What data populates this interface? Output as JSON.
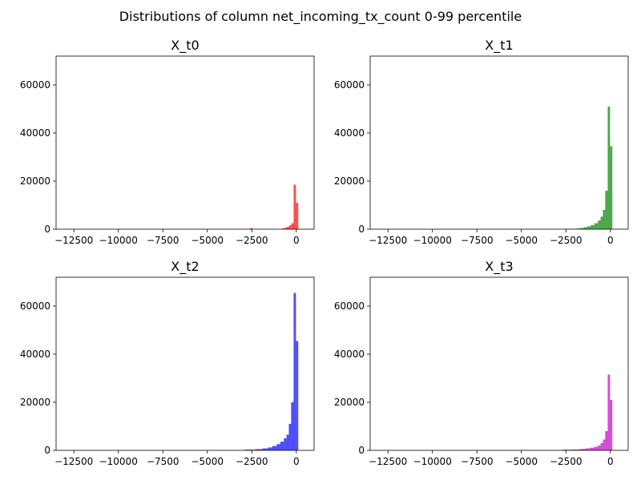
{
  "figure": {
    "suptitle": "Distributions of column net_incoming_tx_count 0-99 percentile"
  },
  "chart_data": [
    {
      "type": "bar",
      "title": "X_t0",
      "color": "#ff0000",
      "xlim": [
        -13500,
        1000
      ],
      "ylim": [
        0,
        72000
      ],
      "xticks": [
        -12500,
        -10000,
        -7500,
        -5000,
        -2500,
        0
      ],
      "xtick_labels": [
        "−12500",
        "−10000",
        "−7500",
        "−5000",
        "−2500",
        "0"
      ],
      "yticks": [
        0,
        20000,
        40000,
        60000
      ],
      "ytick_labels": [
        "0",
        "20000",
        "40000",
        "60000"
      ],
      "bins": [
        {
          "x0": -2600,
          "x1": -2470,
          "value": 500
        },
        {
          "x0": -800,
          "x1": -670,
          "value": 300
        },
        {
          "x0": -670,
          "x1": -540,
          "value": 600
        },
        {
          "x0": -540,
          "x1": -410,
          "value": 1000
        },
        {
          "x0": -410,
          "x1": -280,
          "value": 1600
        },
        {
          "x0": -280,
          "x1": -150,
          "value": 2500
        },
        {
          "x0": -150,
          "x1": -20,
          "value": 18500
        },
        {
          "x0": -20,
          "x1": 110,
          "value": 11000
        }
      ]
    },
    {
      "type": "bar",
      "title": "X_t1",
      "color": "#008000",
      "xlim": [
        -13500,
        1000
      ],
      "ylim": [
        0,
        72000
      ],
      "xticks": [
        -12500,
        -10000,
        -7500,
        -5000,
        -2500,
        0
      ],
      "xtick_labels": [
        "−12500",
        "−10000",
        "−7500",
        "−5000",
        "−2500",
        "0"
      ],
      "yticks": [
        0,
        20000,
        40000,
        60000
      ],
      "ytick_labels": [
        "0",
        "20000",
        "40000",
        "60000"
      ],
      "bins": [
        {
          "x0": -2600,
          "x1": -1900,
          "value": 150
        },
        {
          "x0": -1900,
          "x1": -1700,
          "value": 300
        },
        {
          "x0": -1700,
          "x1": -1500,
          "value": 500
        },
        {
          "x0": -1500,
          "x1": -1300,
          "value": 800
        },
        {
          "x0": -1300,
          "x1": -1100,
          "value": 1200
        },
        {
          "x0": -1100,
          "x1": -900,
          "value": 1700
        },
        {
          "x0": -900,
          "x1": -700,
          "value": 2500
        },
        {
          "x0": -700,
          "x1": -550,
          "value": 3600
        },
        {
          "x0": -550,
          "x1": -420,
          "value": 5200
        },
        {
          "x0": -420,
          "x1": -290,
          "value": 8000
        },
        {
          "x0": -290,
          "x1": -150,
          "value": 16000
        },
        {
          "x0": -150,
          "x1": -20,
          "value": 51000
        },
        {
          "x0": -20,
          "x1": 110,
          "value": 34500
        }
      ]
    },
    {
      "type": "bar",
      "title": "X_t2",
      "color": "#0000ff",
      "xlim": [
        -13500,
        1000
      ],
      "ylim": [
        0,
        72000
      ],
      "xticks": [
        -12500,
        -10000,
        -7500,
        -5000,
        -2500,
        0
      ],
      "xtick_labels": [
        "−12500",
        "−10000",
        "−7500",
        "−5000",
        "−2500",
        "0"
      ],
      "yticks": [
        0,
        20000,
        40000,
        60000
      ],
      "ytick_labels": [
        "0",
        "20000",
        "40000",
        "60000"
      ],
      "bins": [
        {
          "x0": -2900,
          "x1": -2300,
          "value": 300
        },
        {
          "x0": -2300,
          "x1": -1900,
          "value": 500
        },
        {
          "x0": -1900,
          "x1": -1600,
          "value": 800
        },
        {
          "x0": -1600,
          "x1": -1350,
          "value": 1200
        },
        {
          "x0": -1350,
          "x1": -1100,
          "value": 1800
        },
        {
          "x0": -1100,
          "x1": -900,
          "value": 2600
        },
        {
          "x0": -900,
          "x1": -700,
          "value": 3600
        },
        {
          "x0": -700,
          "x1": -550,
          "value": 5000
        },
        {
          "x0": -550,
          "x1": -420,
          "value": 6500
        },
        {
          "x0": -420,
          "x1": -290,
          "value": 11000
        },
        {
          "x0": -290,
          "x1": -150,
          "value": 20000
        },
        {
          "x0": -150,
          "x1": -20,
          "value": 65500
        },
        {
          "x0": -20,
          "x1": 110,
          "value": 45500
        }
      ]
    },
    {
      "type": "bar",
      "title": "X_t3",
      "color": "#bf00bf",
      "xlim": [
        -13500,
        1000
      ],
      "ylim": [
        0,
        72000
      ],
      "xticks": [
        -12500,
        -10000,
        -7500,
        -5000,
        -2500,
        0
      ],
      "xtick_labels": [
        "−12500",
        "−10000",
        "−7500",
        "−5000",
        "−2500",
        "0"
      ],
      "yticks": [
        0,
        20000,
        40000,
        60000
      ],
      "ytick_labels": [
        "0",
        "20000",
        "40000",
        "60000"
      ],
      "bins": [
        {
          "x0": -2700,
          "x1": -2100,
          "value": 300
        },
        {
          "x0": -2100,
          "x1": -1700,
          "value": 400
        },
        {
          "x0": -1700,
          "x1": -1400,
          "value": 600
        },
        {
          "x0": -1400,
          "x1": -1150,
          "value": 800
        },
        {
          "x0": -1150,
          "x1": -900,
          "value": 1100
        },
        {
          "x0": -900,
          "x1": -700,
          "value": 1500
        },
        {
          "x0": -700,
          "x1": -550,
          "value": 2000
        },
        {
          "x0": -550,
          "x1": -420,
          "value": 3000
        },
        {
          "x0": -420,
          "x1": -290,
          "value": 4500
        },
        {
          "x0": -290,
          "x1": -150,
          "value": 8000
        },
        {
          "x0": -150,
          "x1": -20,
          "value": 31500
        },
        {
          "x0": -20,
          "x1": 110,
          "value": 21000
        }
      ]
    }
  ]
}
